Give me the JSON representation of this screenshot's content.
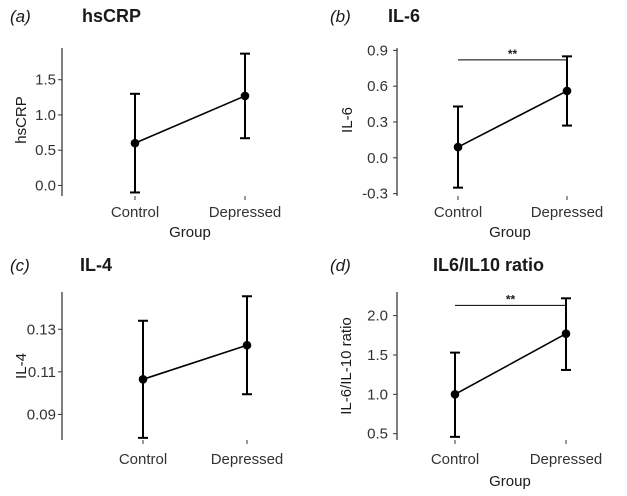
{
  "chart_data": [
    {
      "type": "line",
      "panel": "(a)",
      "title": "hsCRP",
      "xlabel": "",
      "ylabel": "hsCRP",
      "categories": [
        "Control",
        "Depressed"
      ],
      "means": [
        0.6,
        1.27
      ],
      "err_low": [
        -0.1,
        0.67
      ],
      "err_high": [
        1.3,
        1.87
      ],
      "ylim": [
        -0.15,
        1.95
      ],
      "yticks": [
        0.0,
        0.5,
        1.0,
        1.5
      ],
      "ytick_labels": [
        "0.0",
        "0.5",
        "1.0",
        "1.5"
      ],
      "significance": null
    },
    {
      "type": "line",
      "panel": "(b)",
      "title": "IL-6",
      "xlabel": "Group",
      "ylabel": "IL-6",
      "categories": [
        "Control",
        "Depressed"
      ],
      "means": [
        0.09,
        0.56
      ],
      "err_low": [
        -0.25,
        0.27
      ],
      "err_high": [
        0.43,
        0.85
      ],
      "ylim": [
        -0.32,
        0.92
      ],
      "yticks": [
        -0.3,
        0.0,
        0.3,
        0.6,
        0.9
      ],
      "ytick_labels": [
        "-0.3",
        "0.0",
        "0.3",
        "0.6",
        "0.9"
      ],
      "significance": {
        "label": "**",
        "y": 0.82
      }
    },
    {
      "type": "line",
      "panel": "(c)",
      "title": "IL-4",
      "xlabel": "",
      "ylabel": "IL-4",
      "categories": [
        "Control",
        "Depressed"
      ],
      "means": [
        0.1065,
        0.1225
      ],
      "err_low": [
        0.079,
        0.0995
      ],
      "err_high": [
        0.134,
        0.1455
      ],
      "ylim": [
        0.078,
        0.1475
      ],
      "yticks": [
        0.09,
        0.11,
        0.13
      ],
      "ytick_labels": [
        "0.09",
        "0.11",
        "0.13"
      ],
      "significance": null
    },
    {
      "type": "line",
      "panel": "(d)",
      "title": "IL6/IL10 ratio",
      "xlabel": "Group",
      "ylabel": "IL-6/IL-10 ratio",
      "categories": [
        "Control",
        "Depressed"
      ],
      "means": [
        1.0,
        1.77
      ],
      "err_low": [
        0.46,
        1.31
      ],
      "err_high": [
        1.53,
        2.22
      ],
      "ylim": [
        0.42,
        2.3
      ],
      "yticks": [
        0.5,
        1.0,
        1.5,
        2.0
      ],
      "ytick_labels": [
        "0.5",
        "1.0",
        "1.5",
        "2.0"
      ],
      "significance": {
        "label": "**",
        "y": 2.13
      }
    }
  ],
  "bottom_left_xlabel": "Group"
}
